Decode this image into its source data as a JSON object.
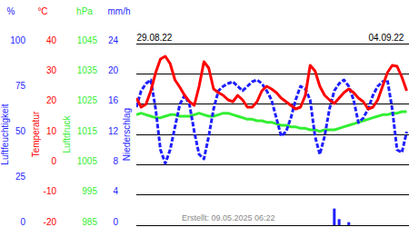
{
  "chart_data": [
    {
      "type": "line",
      "ylabel": "Luftfeuchtigkeit",
      "yunit": "%",
      "color": "#1f1fff",
      "line_style": "dashed",
      "categories": [
        "29.08.22",
        null,
        null,
        null,
        null,
        null,
        null,
        null,
        null,
        null,
        null,
        null,
        null,
        null,
        null,
        null,
        null,
        null,
        null,
        null,
        null,
        null,
        null,
        null,
        null,
        null,
        null,
        null,
        null,
        null,
        null,
        null,
        null,
        null,
        null,
        null,
        null,
        null,
        null,
        null,
        null,
        null,
        null,
        null,
        null,
        null,
        null,
        null,
        "04.09.22",
        null,
        null,
        null,
        null,
        null,
        null,
        null,
        null
      ],
      "annotations": [
        "Erstellt: 09.05.2025 06:22"
      ],
      "ylim": [
        0,
        100
      ],
      "yticks": [
        0,
        25,
        50,
        75,
        100
      ],
      "values": [
        65,
        74,
        78,
        80,
        64,
        41.5,
        34,
        41.5,
        54,
        66.5,
        71.5,
        66.5,
        51.5,
        39,
        36.5,
        49,
        64,
        74,
        76.5,
        78,
        79,
        76.5,
        74,
        76.5,
        79,
        80,
        78,
        74,
        69,
        59,
        49,
        51.5,
        59,
        69,
        76.5,
        75,
        69,
        49,
        39,
        49,
        64,
        74,
        78,
        80,
        76.5,
        69,
        56.5,
        59,
        64,
        71.5,
        76.5,
        79,
        80,
        64,
        41.5,
        40,
        51.5
      ]
    },
    {
      "type": "line",
      "ylabel": "Temperatur",
      "yunit": "°C",
      "color": "#ff0000",
      "grid": true,
      "ylim": [
        -20,
        40
      ],
      "yticks": [
        -20,
        -10,
        0,
        10,
        20,
        30,
        40
      ],
      "values": [
        22,
        19,
        20,
        24.4,
        30.4,
        34.9,
        35.8,
        33.4,
        28,
        25.6,
        22.9,
        20.8,
        19.6,
        25.9,
        34,
        31.9,
        25,
        23.8,
        22.9,
        21.4,
        20.8,
        22.9,
        21.4,
        19,
        19,
        20.8,
        24.4,
        25.9,
        25,
        23.8,
        22,
        20.8,
        19.6,
        18.4,
        19,
        22.9,
        32.8,
        31,
        25.9,
        22.9,
        21.4,
        20.2,
        22,
        23.8,
        25,
        23.8,
        22,
        20.8,
        18.4,
        19,
        21.4,
        25.9,
        30.4,
        32.8,
        32.5,
        28.9,
        24.4
      ]
    },
    {
      "type": "line",
      "ylabel": "Luftdruck",
      "yunit": "hPa",
      "color": "#33ee33",
      "ylim": [
        985,
        1045
      ],
      "yticks": [
        985,
        995,
        1005,
        1015,
        1025,
        1035,
        1045
      ],
      "values": [
        1021.5,
        1022,
        1021.5,
        1021,
        1020.5,
        1020.5,
        1021,
        1021.5,
        1021.5,
        1021,
        1021,
        1021,
        1021.5,
        1022,
        1021.5,
        1021,
        1021,
        1021.5,
        1022,
        1022,
        1021.5,
        1021,
        1020.5,
        1020,
        1020,
        1019.5,
        1019.5,
        1019,
        1019,
        1018.5,
        1018,
        1018,
        1017.5,
        1017.5,
        1017,
        1017,
        1016.5,
        1016.5,
        1016,
        1016.5,
        1016.5,
        1016.5,
        1017,
        1017.5,
        1018,
        1018.5,
        1019,
        1019.5,
        1020,
        1020.5,
        1021,
        1021.5,
        1021.5,
        1022,
        1022,
        1022.5,
        1022.5
      ]
    },
    {
      "type": "bar",
      "ylabel": "Niederschlag",
      "yunit": "mm/h",
      "color": "#1f1fff",
      "ylim": [
        0,
        24
      ],
      "yticks": [
        0,
        4,
        8,
        12,
        16,
        20,
        24
      ],
      "values": [
        0,
        0,
        0,
        0,
        0,
        0,
        0,
        0,
        0,
        0,
        0,
        0,
        0,
        0,
        0,
        0,
        0,
        0,
        0,
        0,
        0,
        0,
        0,
        0,
        0,
        0,
        0,
        0,
        0,
        0,
        0,
        0,
        0,
        0,
        0,
        0,
        0,
        0,
        0,
        0,
        0,
        2.2,
        0.8,
        0,
        0.4,
        0,
        0,
        0,
        0,
        0,
        0,
        0,
        0,
        0,
        0,
        0,
        0
      ]
    }
  ]
}
